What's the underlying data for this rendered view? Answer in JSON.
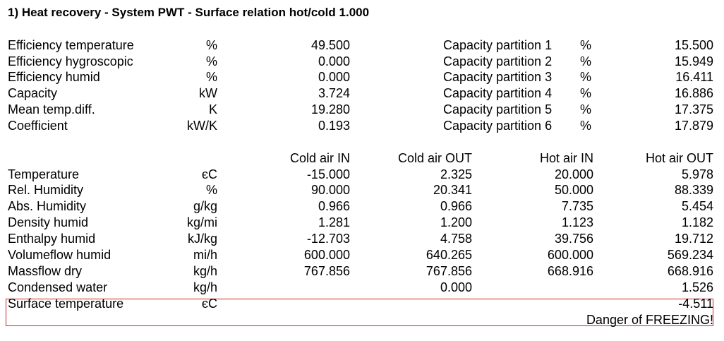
{
  "title": "1) Heat recovery  - System PWT - Surface relation hot/cold 1.000",
  "summary": [
    {
      "label": "Efficiency temperature",
      "unit": "%",
      "value": "49.500",
      "p_label": "Capacity partition 1",
      "p_unit": "%",
      "p_value": "15.500"
    },
    {
      "label": "Efficiency hygroscopic",
      "unit": "%",
      "value": "0.000",
      "p_label": "Capacity partition 2",
      "p_unit": "%",
      "p_value": "15.949"
    },
    {
      "label": "Efficiency humid",
      "unit": "%",
      "value": "0.000",
      "p_label": "Capacity partition 3",
      "p_unit": "%",
      "p_value": "16.411"
    },
    {
      "label": "Capacity",
      "unit": "kW",
      "value": "3.724",
      "p_label": "Capacity partition 4",
      "p_unit": "%",
      "p_value": "16.886"
    },
    {
      "label": "Mean temp.diff.",
      "unit": "K",
      "value": "19.280",
      "p_label": "Capacity partition 5",
      "p_unit": "%",
      "p_value": "17.375"
    },
    {
      "label": "Coefficient",
      "unit": "kW/K",
      "value": "0.193",
      "p_label": "Capacity partition 6",
      "p_unit": "%",
      "p_value": "17.879"
    }
  ],
  "columns": [
    "Cold air IN",
    "Cold air OUT",
    "Hot air IN",
    "Hot air OUT"
  ],
  "rows": [
    {
      "label": "Temperature",
      "unit": "єC",
      "v": [
        "-15.000",
        "2.325",
        "20.000",
        "5.978"
      ]
    },
    {
      "label": "Rel. Humidity",
      "unit": "%",
      "v": [
        "90.000",
        "20.341",
        "50.000",
        "88.339"
      ]
    },
    {
      "label": "Abs. Humidity",
      "unit": "g/kg",
      "v": [
        "0.966",
        "0.966",
        "7.735",
        "5.454"
      ]
    },
    {
      "label": "Density humid",
      "unit": "kg/mі",
      "v": [
        "1.281",
        "1.200",
        "1.123",
        "1.182"
      ]
    },
    {
      "label": "Enthalpy humid",
      "unit": "kJ/kg",
      "v": [
        "-12.703",
        "4.758",
        "39.756",
        "19.712"
      ]
    },
    {
      "label": "Volumeflow humid",
      "unit": "mі/h",
      "v": [
        "600.000",
        "640.265",
        "600.000",
        "569.234"
      ]
    },
    {
      "label": "Massflow dry",
      "unit": "kg/h",
      "v": [
        "767.856",
        "767.856",
        "668.916",
        "668.916"
      ]
    },
    {
      "label": "Condensed water",
      "unit": "kg/h",
      "v": [
        "",
        "0.000",
        "",
        "1.526"
      ]
    },
    {
      "label": "Surface temperature",
      "unit": "єC",
      "v": [
        "",
        "",
        "",
        "-4.511"
      ]
    }
  ],
  "warning": "Danger of FREEZING!",
  "colors": {
    "text": "#000000",
    "warning_border": "#cc2222",
    "background": "#ffffff"
  }
}
